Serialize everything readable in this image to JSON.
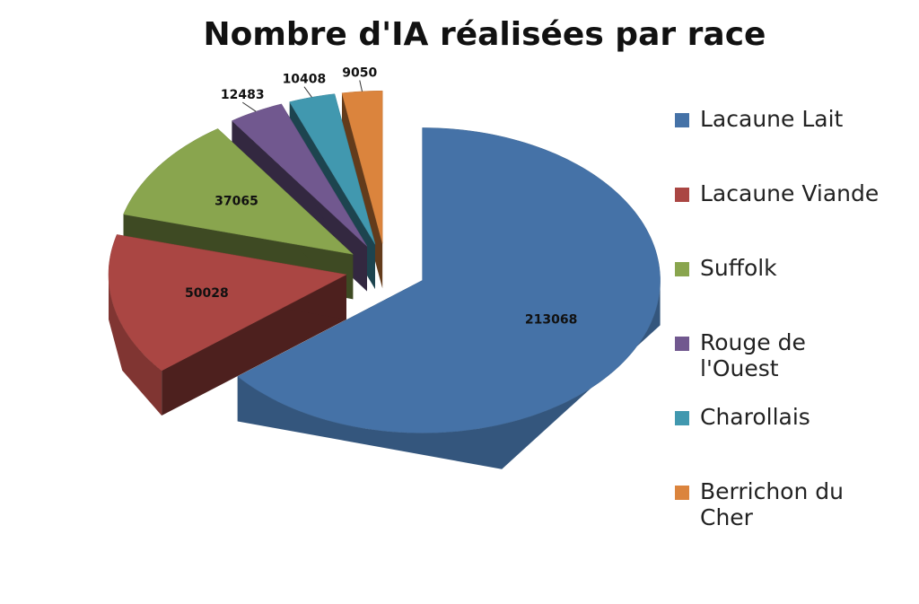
{
  "chart_data": {
    "type": "pie",
    "title": "Nombre d'IA réalisées par race",
    "categories": [
      "Lacaune Lait",
      "Lacaune Viande",
      "Suffolk",
      "Rouge de l'Ouest",
      "Charollais",
      "Berrichon du Cher"
    ],
    "values": [
      213068,
      50028,
      37065,
      12483,
      10408,
      9050
    ],
    "colors": [
      "#4572a7",
      "#aa4643",
      "#89a54e",
      "#71588f",
      "#4198af",
      "#db843d"
    ],
    "legend": "right"
  }
}
